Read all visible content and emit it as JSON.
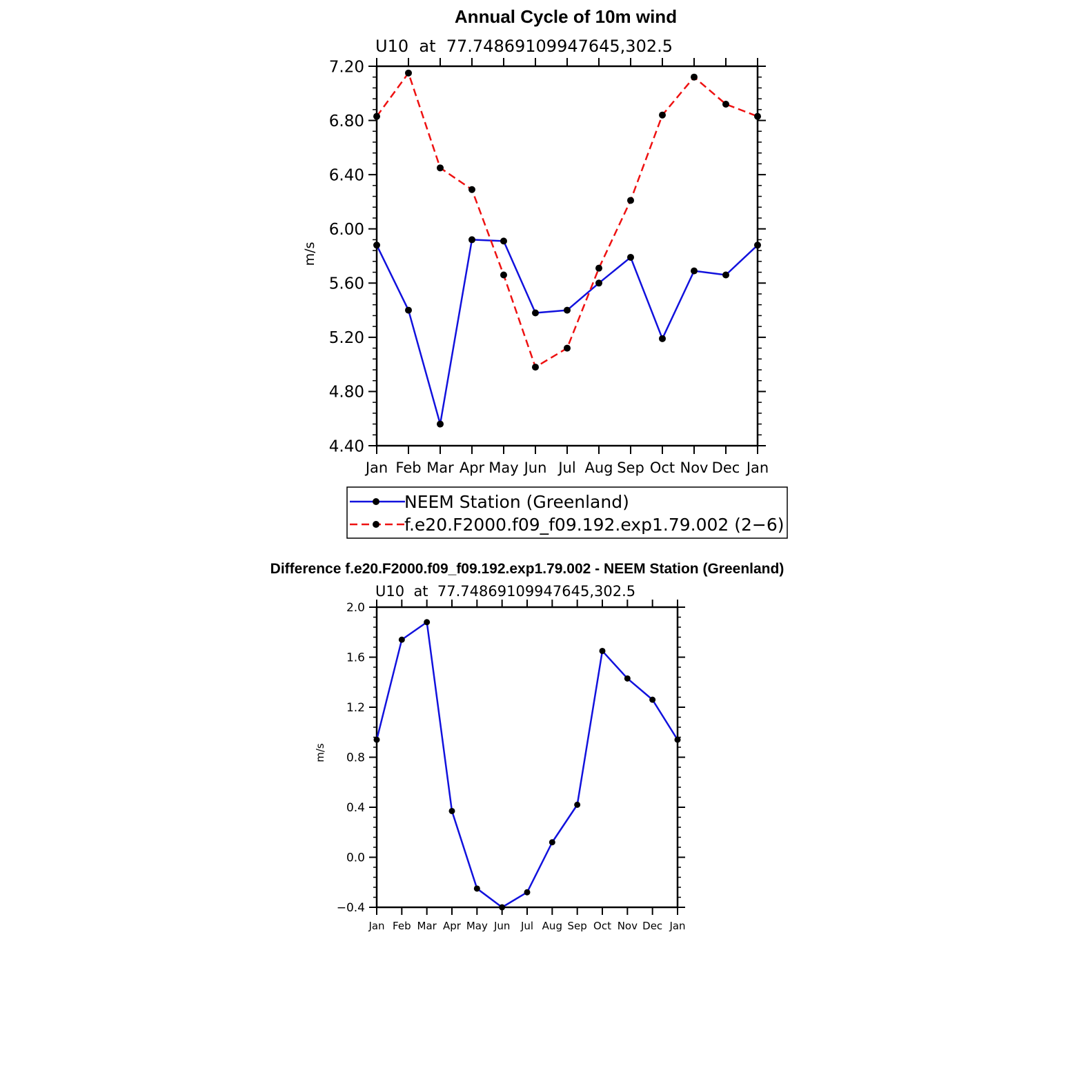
{
  "chart_data": [
    {
      "type": "line",
      "title": "Annual Cycle of 10m wind",
      "subtitle": "U10  at  77.74869109947645,302.5",
      "xlabel": "",
      "ylabel": "m/s",
      "categories": [
        "Jan",
        "Feb",
        "Mar",
        "Apr",
        "May",
        "Jun",
        "Jul",
        "Aug",
        "Sep",
        "Oct",
        "Nov",
        "Dec",
        "Jan"
      ],
      "ylim": [
        4.4,
        7.2
      ],
      "yticks": [
        "4.40",
        "4.80",
        "5.20",
        "5.60",
        "6.00",
        "6.40",
        "6.80",
        "7.20"
      ],
      "series": [
        {
          "name": "NEEM Station (Greenland)",
          "color": "#1111dd",
          "style": "solid",
          "values": [
            5.88,
            5.4,
            4.56,
            5.92,
            5.91,
            5.38,
            5.4,
            5.6,
            5.79,
            5.19,
            5.69,
            5.66,
            5.88
          ]
        },
        {
          "name": "f.e20.F2000.f09_f09.192.exp1.79.002 (2−6)",
          "color": "#ee1111",
          "style": "dashed",
          "values": [
            6.83,
            7.15,
            6.45,
            6.29,
            5.66,
            4.98,
            5.12,
            5.71,
            6.21,
            6.84,
            7.12,
            6.92,
            6.83
          ]
        }
      ],
      "legend": [
        "NEEM Station (Greenland)",
        "f.e20.F2000.f09_f09.192.exp1.79.002 (2−6)"
      ]
    },
    {
      "type": "line",
      "title": "Difference f.e20.F2000.f09_f09.192.exp1.79.002 - NEEM Station (Greenland)",
      "subtitle": "U10  at  77.74869109947645,302.5",
      "xlabel": "",
      "ylabel": "m/s",
      "categories": [
        "Jan",
        "Feb",
        "Mar",
        "Apr",
        "May",
        "Jun",
        "Jul",
        "Aug",
        "Sep",
        "Oct",
        "Nov",
        "Dec",
        "Jan"
      ],
      "ylim": [
        -0.4,
        2.0
      ],
      "yticks": [
        "−0.4",
        "0.0",
        "0.4",
        "0.8",
        "1.2",
        "1.6",
        "2.0"
      ],
      "series": [
        {
          "name": "Difference",
          "color": "#1111dd",
          "style": "solid",
          "values": [
            0.94,
            1.74,
            1.88,
            0.37,
            -0.25,
            -0.4,
            -0.28,
            0.12,
            0.42,
            1.65,
            1.43,
            1.26,
            0.94
          ]
        }
      ]
    }
  ]
}
